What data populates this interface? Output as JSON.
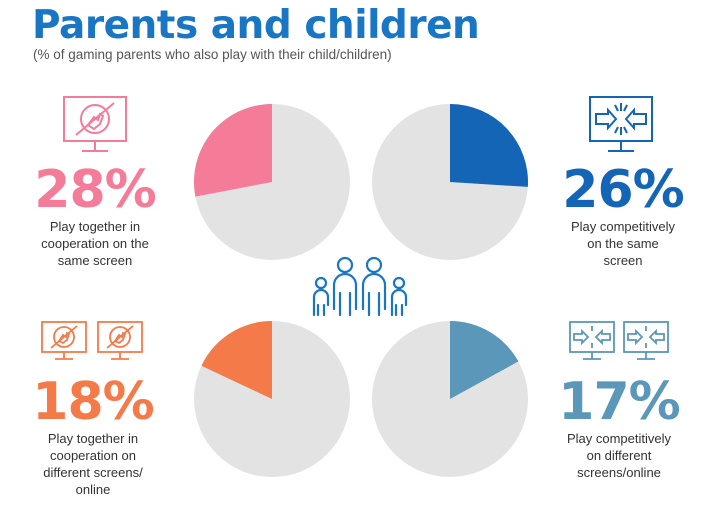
{
  "title": "Parents and children",
  "subtitle": "(% of gaming parents who also play with their child/children)",
  "colors": {
    "title": "#1976c5",
    "pink": "#f47c99",
    "blue": "#1565b6",
    "orange": "#f47a49",
    "teal": "#5a97b8",
    "grey": "#e3e3e4"
  },
  "chart_data": [
    {
      "type": "pie",
      "name": "coop-same-screen",
      "values": [
        28,
        72
      ],
      "percent_label": "28%",
      "description": [
        "Play together in",
        "cooperation on the",
        "same screen"
      ],
      "color": "#f47c99",
      "icon": "controller-hand-monitor-icon"
    },
    {
      "type": "pie",
      "name": "competitive-same-screen",
      "values": [
        26,
        74
      ],
      "percent_label": "26%",
      "description": [
        "Play competitively",
        "on the same",
        "screen"
      ],
      "color": "#1565b6",
      "icon": "versus-arrows-monitor-icon"
    },
    {
      "type": "pie",
      "name": "coop-different-screens",
      "values": [
        18,
        82
      ],
      "percent_label": "18%",
      "description": [
        "Play together in",
        "cooperation on",
        "different screens/",
        "online"
      ],
      "color": "#f47a49",
      "icon": "controller-hand-monitor-icon"
    },
    {
      "type": "pie",
      "name": "competitive-different-screens",
      "values": [
        17,
        83
      ],
      "percent_label": "17%",
      "description": [
        "Play competitively",
        "on different",
        "screens/online"
      ],
      "color": "#5a97b8",
      "icon": "versus-arrows-monitor-icon"
    }
  ],
  "center_icon": "family-icon"
}
